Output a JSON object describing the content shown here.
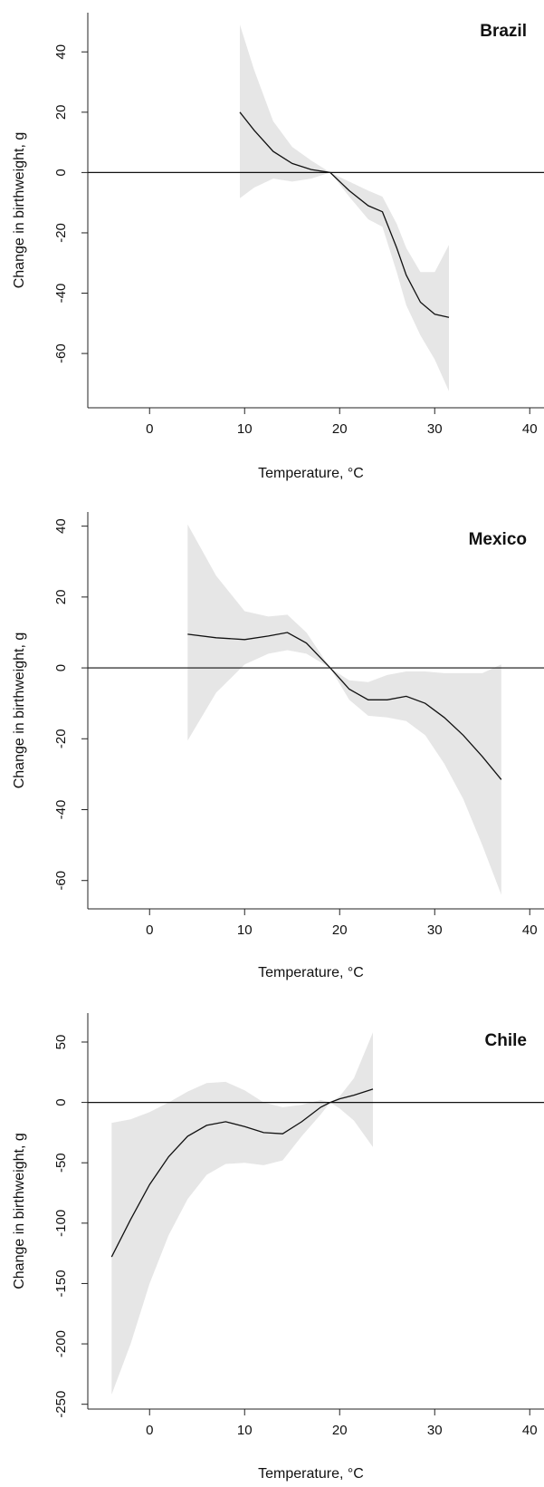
{
  "colors": {
    "ci_band": "#e6e6e6",
    "curve": "#111111",
    "axis": "#222222"
  },
  "chart_data": [
    {
      "type": "line",
      "title": "Brazil",
      "xlabel": "Temperature, °C",
      "ylabel": "Change in birthweight, g",
      "xlim": [
        -6.5,
        41.5
      ],
      "ylim": [
        -78,
        53
      ],
      "xticks": [
        0,
        10,
        20,
        30,
        40
      ],
      "yticks": [
        40,
        20,
        0,
        -20,
        -40,
        -60
      ],
      "reference_line": 0,
      "grid": false,
      "series": [
        {
          "x": [
            9.5,
            11,
            13,
            15,
            17,
            19,
            21,
            23,
            24.5,
            26,
            27,
            28.5,
            30,
            31.5
          ],
          "y": [
            20,
            14,
            7,
            3,
            1,
            0,
            -6,
            -11,
            -13,
            -25,
            -34,
            -43,
            -47,
            -48
          ],
          "lower": [
            -8.5,
            -5,
            -2,
            -3,
            -2,
            0,
            -8,
            -15.5,
            -18,
            -33,
            -44,
            -54,
            -62,
            -72.5
          ],
          "upper": [
            49,
            34,
            17,
            8.5,
            4,
            0,
            -3,
            -6,
            -8,
            -17,
            -25,
            -33,
            -33,
            -24
          ]
        }
      ]
    },
    {
      "type": "line",
      "title": "Mexico",
      "xlabel": "Temperature, °C",
      "ylabel": "Change in birthweight, g",
      "xlim": [
        -6.5,
        41.5
      ],
      "ylim": [
        -68,
        44
      ],
      "xticks": [
        0,
        10,
        20,
        30,
        40
      ],
      "yticks": [
        40,
        20,
        0,
        -20,
        -40,
        -60
      ],
      "reference_line": 0,
      "grid": false,
      "series": [
        {
          "x": [
            4,
            7,
            10,
            12.5,
            14.5,
            16.5,
            19,
            21,
            23,
            25,
            27,
            29,
            31,
            33,
            35,
            37
          ],
          "y": [
            9.5,
            8.5,
            8,
            9,
            10,
            7,
            0,
            -6,
            -9,
            -9,
            -8,
            -10,
            -14,
            -19,
            -25,
            -31.5
          ],
          "lower": [
            -20.5,
            -7,
            1,
            4,
            5,
            4,
            0,
            -9,
            -13.5,
            -14,
            -15,
            -19,
            -27,
            -37,
            -50,
            -64
          ],
          "upper": [
            40.5,
            26,
            16,
            14.5,
            15,
            10,
            0,
            -3.5,
            -4,
            -2,
            -1,
            -1,
            -1.5,
            -1.5,
            -1.5,
            1
          ]
        }
      ]
    },
    {
      "type": "line",
      "title": "Chile",
      "xlabel": "Temperature, °C",
      "ylabel": "Change in birthweight, g",
      "xlim": [
        -6.5,
        41.5
      ],
      "ylim": [
        -254,
        74
      ],
      "xticks": [
        0,
        10,
        20,
        30,
        40
      ],
      "yticks": [
        50,
        0,
        -50,
        -100,
        -150,
        -200,
        -250
      ],
      "reference_line": 0,
      "grid": false,
      "series": [
        {
          "x": [
            -4,
            -2,
            0,
            2,
            4,
            6,
            8,
            10,
            12,
            14,
            16,
            18,
            19,
            20,
            21.5,
            23.5
          ],
          "y": [
            -128,
            -97,
            -68,
            -45,
            -28,
            -19,
            -16,
            -20,
            -25,
            -26,
            -16,
            -4,
            0,
            3,
            6,
            11
          ],
          "lower": [
            -242,
            -200,
            -150,
            -110,
            -80,
            -60,
            -51,
            -50,
            -52,
            -48,
            -28,
            -10,
            0,
            -5,
            -15,
            -37
          ],
          "upper": [
            -17,
            -14,
            -8,
            0,
            9,
            16,
            17,
            10,
            0,
            -4,
            -2,
            2,
            0,
            5,
            20,
            58
          ]
        }
      ]
    }
  ]
}
